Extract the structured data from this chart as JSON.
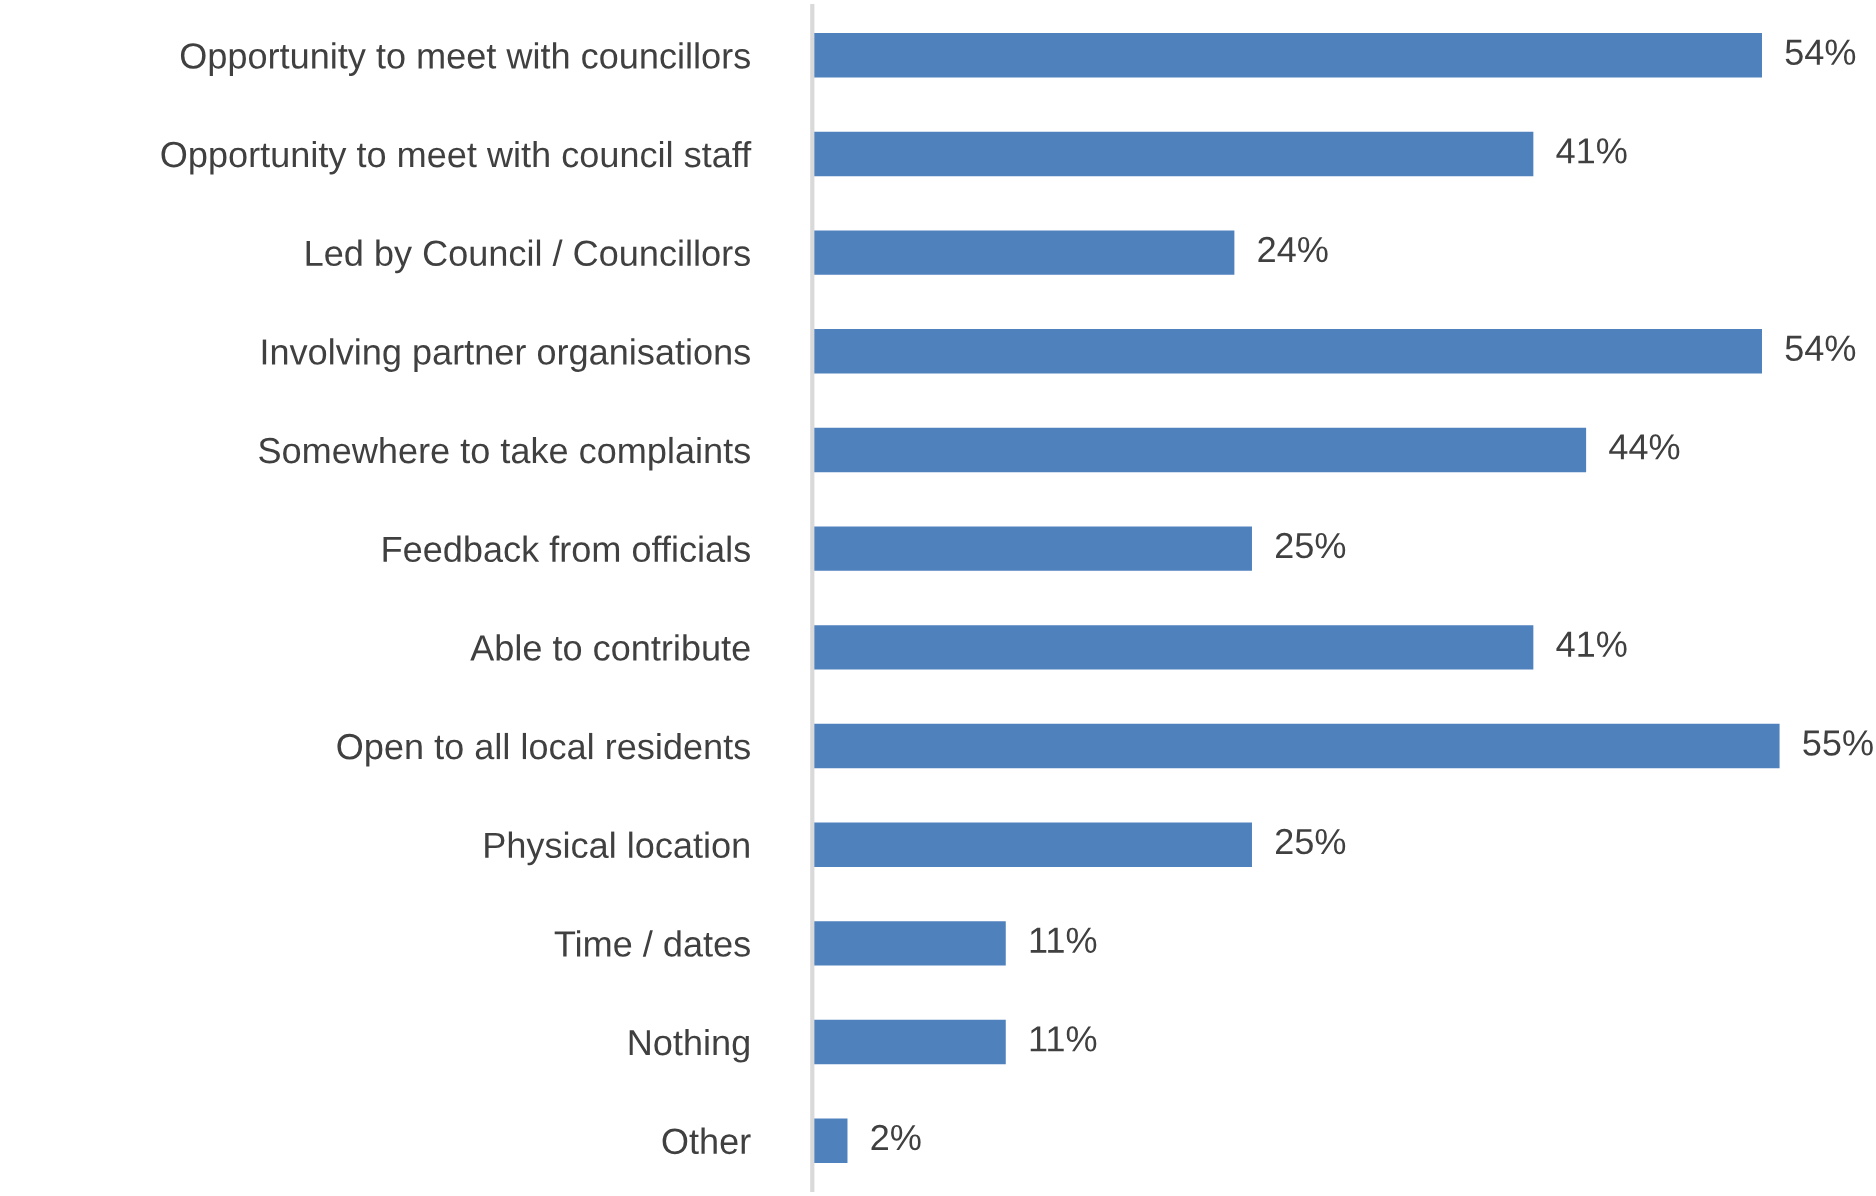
{
  "chart_data": {
    "type": "bar",
    "orientation": "horizontal",
    "categories": [
      "Opportunity to meet with councillors",
      "Opportunity to meet with council staff",
      "Led by Council / Councillors",
      "Involving partner organisations",
      "Somewhere to take complaints",
      "Feedback from officials",
      "Able to contribute",
      "Open to all local residents",
      "Physical location",
      "Time / dates",
      "Nothing",
      "Other"
    ],
    "values": [
      54,
      41,
      24,
      54,
      44,
      25,
      41,
      55,
      25,
      11,
      11,
      2
    ],
    "value_labels": [
      "54%",
      "41%",
      "24%",
      "54%",
      "44%",
      "25%",
      "41%",
      "55%",
      "25%",
      "11%",
      "11%",
      "2%"
    ],
    "color": "#4f81bd",
    "grid": false,
    "legend": false,
    "tick_labels": "y"
  }
}
